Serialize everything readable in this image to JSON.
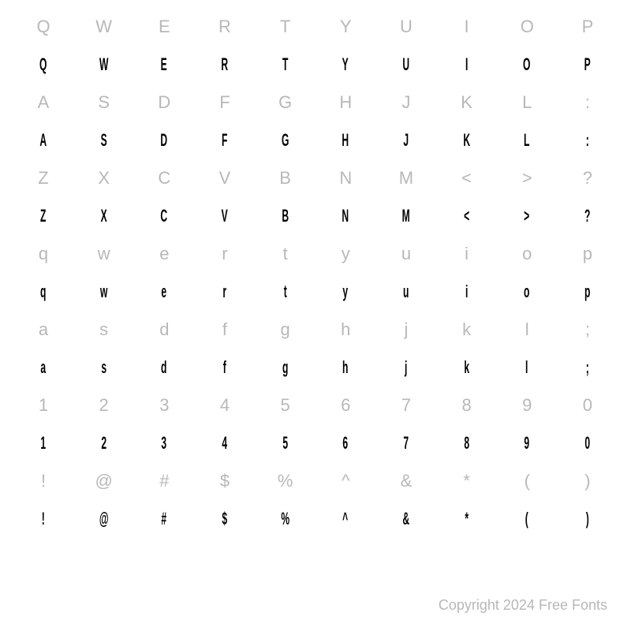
{
  "rows": [
    {
      "ref": [
        "Q",
        "W",
        "E",
        "R",
        "T",
        "Y",
        "U",
        "I",
        "O",
        "P"
      ],
      "sample": [
        "Q",
        "W",
        "E",
        "R",
        "T",
        "Y",
        "U",
        "I",
        "O",
        "P"
      ]
    },
    {
      "ref": [
        "A",
        "S",
        "D",
        "F",
        "G",
        "H",
        "J",
        "K",
        "L",
        ":"
      ],
      "sample": [
        "A",
        "S",
        "D",
        "F",
        "G",
        "H",
        "J",
        "K",
        "L",
        ":"
      ]
    },
    {
      "ref": [
        "Z",
        "X",
        "C",
        "V",
        "B",
        "N",
        "M",
        "<",
        ">",
        "?"
      ],
      "sample": [
        "Z",
        "X",
        "C",
        "V",
        "B",
        "N",
        "M",
        "<",
        ">",
        "?"
      ]
    },
    {
      "ref": [
        "q",
        "w",
        "e",
        "r",
        "t",
        "y",
        "u",
        "i",
        "o",
        "p"
      ],
      "sample": [
        "q",
        "w",
        "e",
        "r",
        "t",
        "y",
        "u",
        "i",
        "o",
        "p"
      ]
    },
    {
      "ref": [
        "a",
        "s",
        "d",
        "f",
        "g",
        "h",
        "j",
        "k",
        "l",
        ";"
      ],
      "sample": [
        "a",
        "s",
        "d",
        "f",
        "g",
        "h",
        "j",
        "k",
        "l",
        ";"
      ]
    },
    {
      "ref": [
        "1",
        "2",
        "3",
        "4",
        "5",
        "6",
        "7",
        "8",
        "9",
        "0"
      ],
      "sample": [
        "1",
        "2",
        "3",
        "4",
        "5",
        "6",
        "7",
        "8",
        "9",
        "0"
      ]
    },
    {
      "ref": [
        "!",
        "@",
        "#",
        "$",
        "%",
        "^",
        "&",
        "*",
        "(",
        ")"
      ],
      "sample": [
        "!",
        "@",
        "#",
        "$",
        "%",
        "^",
        "&",
        "*",
        "(",
        ")"
      ]
    }
  ],
  "copyright": "Copyright 2024 Free Fonts",
  "colors": {
    "reference": "#b8b8b8",
    "sample": "#000000",
    "background": "#ffffff"
  },
  "fontSizes": {
    "glyph": 22,
    "copyright": 18
  }
}
